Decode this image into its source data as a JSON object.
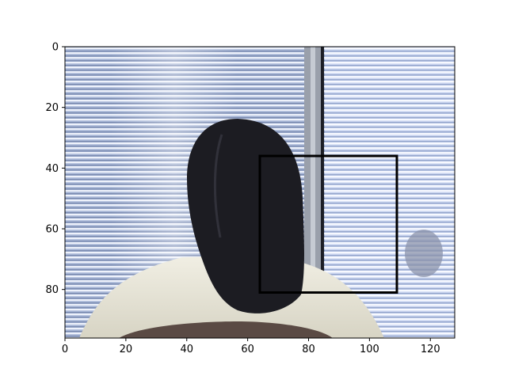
{
  "chart_data": {
    "type": "image",
    "title": "",
    "xlabel": "",
    "ylabel": "",
    "image_extent": {
      "x": [
        0,
        128
      ],
      "y": [
        0,
        96
      ]
    },
    "xlim": [
      0,
      128
    ],
    "ylim": [
      96,
      0
    ],
    "y_axis_inverted": true,
    "x_ticks": [
      0,
      20,
      40,
      60,
      80,
      100,
      120
    ],
    "x_tick_labels": [
      "0",
      "20",
      "40",
      "60",
      "80",
      "100",
      "120"
    ],
    "y_ticks": [
      0,
      20,
      40,
      60,
      80
    ],
    "y_tick_labels": [
      "0",
      "20",
      "40",
      "60",
      "80"
    ],
    "grid": false,
    "bounding_box": {
      "x0": 64,
      "y0": 36,
      "x1": 109,
      "y1": 81,
      "color": "#000000"
    },
    "scene": "Back of a person with long dark hair and a white top, seated in front of window blinds"
  }
}
